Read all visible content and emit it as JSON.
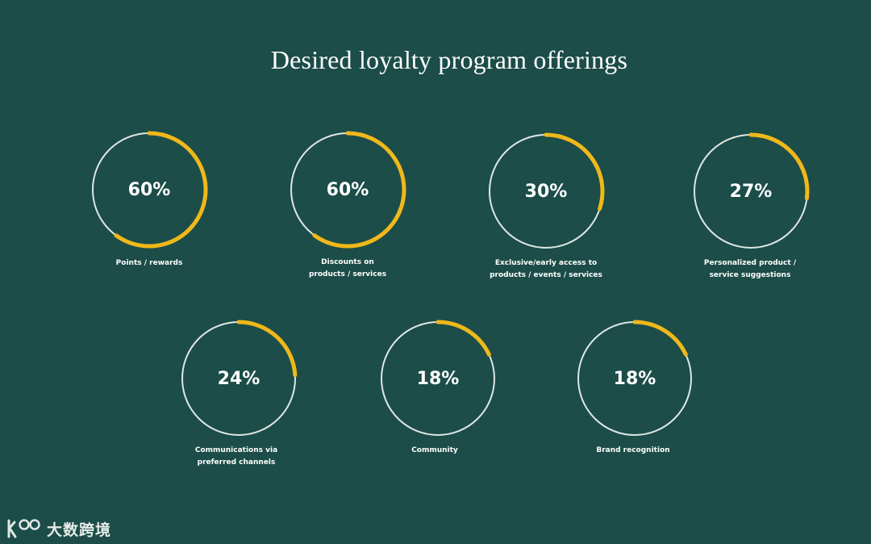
{
  "chart_data": {
    "type": "donut",
    "title": "Desired loyalty program offerings",
    "categories": [
      "Points / rewards",
      "Discounts on products / services",
      "Exclusive/early access to products / events / services",
      "Personalized product / service suggestions",
      "Communications via preferred channels",
      "Community",
      "Brand recognition"
    ],
    "values": [
      60,
      60,
      30,
      27,
      24,
      18,
      18
    ],
    "unit": "%",
    "items": [
      {
        "value_label": "60%",
        "label_lines": [
          "Points / rewards"
        ],
        "value": 60
      },
      {
        "value_label": "60%",
        "label_lines": [
          "Discounts on",
          "products / services"
        ],
        "value": 60
      },
      {
        "value_label": "30%",
        "label_lines": [
          "Exclusive/early access to",
          "products / events / services"
        ],
        "value": 30
      },
      {
        "value_label": "27%",
        "label_lines": [
          "Personalized product /",
          "service suggestions"
        ],
        "value": 27
      },
      {
        "value_label": "24%",
        "label_lines": [
          "Communications via",
          "preferred channels"
        ],
        "value": 24
      },
      {
        "value_label": "18%",
        "label_lines": [
          "Community"
        ],
        "value": 18
      },
      {
        "value_label": "18%",
        "label_lines": [
          "Brand recognition"
        ],
        "value": 18
      }
    ]
  },
  "colors": {
    "background": "#1c4d48",
    "ring_track": "#dfe6e3",
    "ring_fill": "#f0b81b",
    "text": "#ffffff"
  },
  "watermark": {
    "logo_icon": "k100-logo-icon",
    "text": "大数跨境"
  }
}
